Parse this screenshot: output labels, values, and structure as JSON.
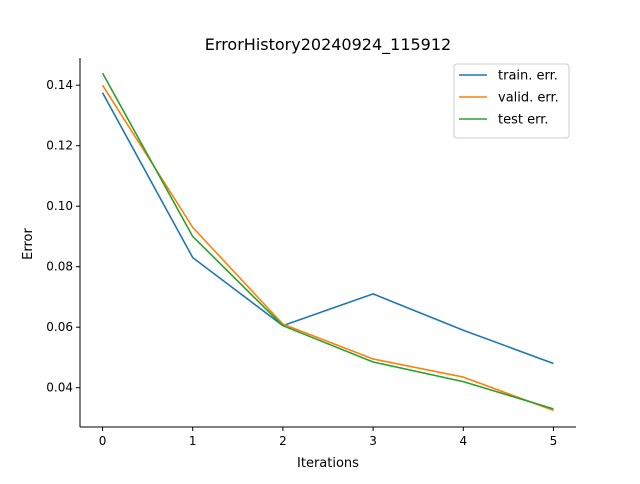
{
  "chart_data": {
    "type": "line",
    "title": "ErrorHistory20240924_115912",
    "xlabel": "Iterations",
    "ylabel": "Error",
    "x": [
      0,
      1,
      2,
      3,
      4,
      5
    ],
    "xlim": [
      -0.25,
      5.25
    ],
    "ylim": [
      0.027,
      0.149
    ],
    "xticks": [
      0,
      1,
      2,
      3,
      4,
      5
    ],
    "yticks": [
      0.04,
      0.06,
      0.08,
      0.1,
      0.12,
      0.14
    ],
    "ytick_labels": [
      "0.04",
      "0.06",
      "0.08",
      "0.10",
      "0.12",
      "0.14"
    ],
    "grid": false,
    "legend_position": "top-right",
    "series": [
      {
        "name": "train. err.",
        "color": "#1f77b4",
        "values": [
          0.1375,
          0.083,
          0.0605,
          0.071,
          0.059,
          0.048
        ]
      },
      {
        "name": "valid. err.",
        "color": "#ff7f0e",
        "values": [
          0.14,
          0.093,
          0.061,
          0.0495,
          0.0435,
          0.0325
        ]
      },
      {
        "name": "test err.",
        "color": "#2ca02c",
        "values": [
          0.144,
          0.09,
          0.0605,
          0.0485,
          0.042,
          0.033
        ]
      }
    ]
  }
}
